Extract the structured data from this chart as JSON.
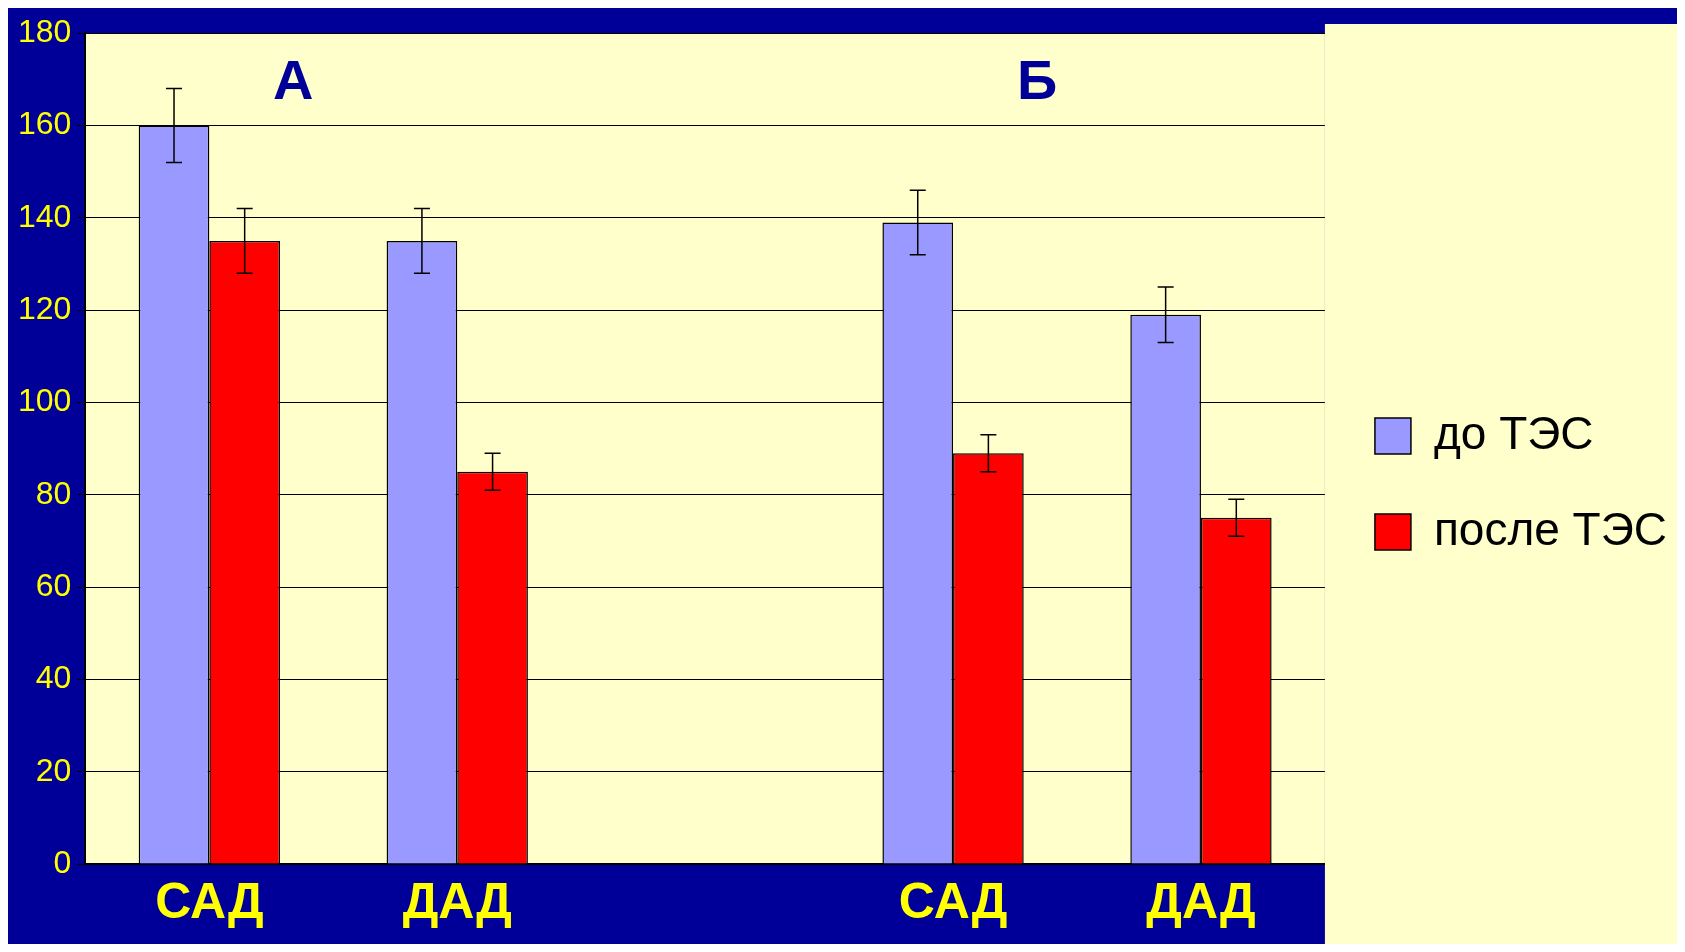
{
  "chart_data": {
    "type": "bar",
    "categories": [
      "САД",
      "ДАД",
      null,
      "САД",
      "ДАД"
    ],
    "series": [
      {
        "name": "до ТЭС",
        "color": "#9999ff",
        "values": [
          160,
          135,
          null,
          139,
          119
        ],
        "errors": [
          8,
          7,
          null,
          7,
          6
        ]
      },
      {
        "name": "после ТЭС",
        "color": "#ff0000",
        "values": [
          135,
          85,
          null,
          89,
          75
        ],
        "errors": [
          7,
          4,
          null,
          4,
          4
        ]
      }
    ],
    "ylim": [
      0,
      180
    ],
    "yticks": [
      0,
      20,
      40,
      60,
      80,
      100,
      120,
      140,
      160,
      180
    ],
    "grid": "y",
    "legend": "right",
    "annotations": [
      "А",
      "Б"
    ]
  }
}
